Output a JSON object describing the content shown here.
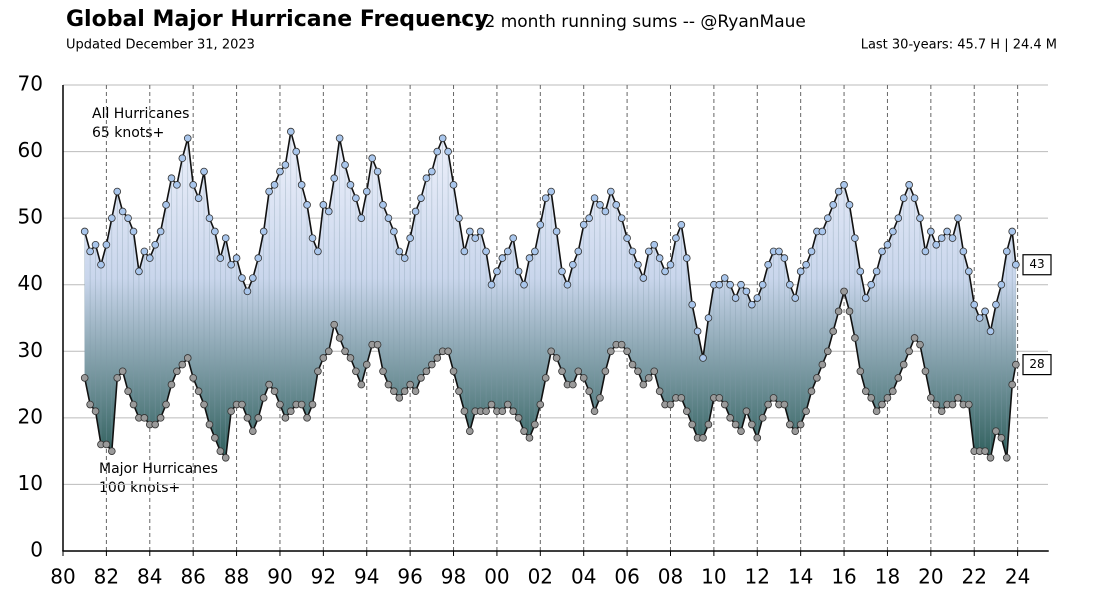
{
  "chart_data": {
    "type": "line",
    "title": "Global Major Hurricane Frequency",
    "subtitle": "-- 12 month running sums -- @RyanMaue",
    "updated": "Updated December 31, 2023",
    "summary": "Last 30-years:  45.7 H | 24.4 M",
    "xlim": [
      1980,
      2025.4
    ],
    "ylim": [
      0,
      70
    ],
    "yticks": [
      0,
      10,
      20,
      30,
      40,
      50,
      60,
      70
    ],
    "xticks": [
      {
        "value": 1980,
        "label": "80"
      },
      {
        "value": 1982,
        "label": "82"
      },
      {
        "value": 1984,
        "label": "84"
      },
      {
        "value": 1986,
        "label": "86"
      },
      {
        "value": 1988,
        "label": "88"
      },
      {
        "value": 1990,
        "label": "90"
      },
      {
        "value": 1992,
        "label": "92"
      },
      {
        "value": 1994,
        "label": "94"
      },
      {
        "value": 1996,
        "label": "96"
      },
      {
        "value": 1998,
        "label": "98"
      },
      {
        "value": 2000,
        "label": "00"
      },
      {
        "value": 2002,
        "label": "02"
      },
      {
        "value": 2004,
        "label": "04"
      },
      {
        "value": 2006,
        "label": "06"
      },
      {
        "value": 2008,
        "label": "08"
      },
      {
        "value": 2010,
        "label": "10"
      },
      {
        "value": 2012,
        "label": "12"
      },
      {
        "value": 2014,
        "label": "14"
      },
      {
        "value": 2016,
        "label": "16"
      },
      {
        "value": 2018,
        "label": "18"
      },
      {
        "value": 2020,
        "label": "20"
      },
      {
        "value": 2022,
        "label": "22"
      },
      {
        "value": 2024,
        "label": "24"
      }
    ],
    "grid": true,
    "x": [
      1981,
      1981.25,
      1981.5,
      1981.75,
      1982,
      1982.25,
      1982.5,
      1982.75,
      1983,
      1983.25,
      1983.5,
      1983.75,
      1984,
      1984.25,
      1984.5,
      1984.75,
      1985,
      1985.25,
      1985.5,
      1985.75,
      1986,
      1986.25,
      1986.5,
      1986.75,
      1987,
      1987.25,
      1987.5,
      1987.75,
      1988,
      1988.25,
      1988.5,
      1988.75,
      1989,
      1989.25,
      1989.5,
      1989.75,
      1990,
      1990.25,
      1990.5,
      1990.75,
      1991,
      1991.25,
      1991.5,
      1991.75,
      1992,
      1992.25,
      1992.5,
      1992.75,
      1993,
      1993.25,
      1993.5,
      1993.75,
      1994,
      1994.25,
      1994.5,
      1994.75,
      1995,
      1995.25,
      1995.5,
      1995.75,
      1996,
      1996.25,
      1996.5,
      1996.75,
      1997,
      1997.25,
      1997.5,
      1997.75,
      1998,
      1998.25,
      1998.5,
      1998.75,
      1999,
      1999.25,
      1999.5,
      1999.75,
      2000,
      2000.25,
      2000.5,
      2000.75,
      2001,
      2001.25,
      2001.5,
      2001.75,
      2002,
      2002.25,
      2002.5,
      2002.75,
      2003,
      2003.25,
      2003.5,
      2003.75,
      2004,
      2004.25,
      2004.5,
      2004.75,
      2005,
      2005.25,
      2005.5,
      2005.75,
      2006,
      2006.25,
      2006.5,
      2006.75,
      2007,
      2007.25,
      2007.5,
      2007.75,
      2008,
      2008.25,
      2008.5,
      2008.75,
      2009,
      2009.25,
      2009.5,
      2009.75,
      2010,
      2010.25,
      2010.5,
      2010.75,
      2011,
      2011.25,
      2011.5,
      2011.75,
      2012,
      2012.25,
      2012.5,
      2012.75,
      2013,
      2013.25,
      2013.5,
      2013.75,
      2014,
      2014.25,
      2014.5,
      2014.75,
      2015,
      2015.25,
      2015.5,
      2015.75,
      2016,
      2016.25,
      2016.5,
      2016.75,
      2017,
      2017.25,
      2017.5,
      2017.75,
      2018,
      2018.25,
      2018.5,
      2018.75,
      2019,
      2019.25,
      2019.5,
      2019.75,
      2020,
      2020.25,
      2020.5,
      2020.75,
      2021,
      2021.25,
      2021.5,
      2021.75,
      2022,
      2022.25,
      2022.5,
      2022.75,
      2023,
      2023.25,
      2023.5,
      2023.75,
      2023.92
    ],
    "series": [
      {
        "name": "All Hurricanes",
        "subname": "65 knots+",
        "color": "#a9c6ec",
        "values": [
          48,
          45,
          46,
          43,
          46,
          50,
          54,
          51,
          50,
          48,
          42,
          45,
          44,
          46,
          48,
          52,
          56,
          55,
          59,
          62,
          55,
          53,
          57,
          50,
          48,
          44,
          47,
          43,
          44,
          41,
          39,
          41,
          44,
          48,
          54,
          55,
          57,
          58,
          63,
          60,
          55,
          52,
          47,
          45,
          52,
          51,
          56,
          62,
          58,
          55,
          53,
          50,
          54,
          59,
          57,
          52,
          50,
          48,
          45,
          44,
          47,
          51,
          53,
          56,
          57,
          60,
          62,
          60,
          55,
          50,
          45,
          48,
          47,
          48,
          45,
          40,
          42,
          44,
          45,
          47,
          42,
          40,
          44,
          45,
          49,
          53,
          54,
          48,
          42,
          40,
          43,
          45,
          49,
          50,
          53,
          52,
          51,
          54,
          52,
          50,
          47,
          45,
          43,
          41,
          45,
          46,
          44,
          42,
          43,
          47,
          49,
          44,
          37,
          33,
          29,
          35,
          40,
          40,
          41,
          40,
          38,
          40,
          39,
          37,
          38,
          40,
          43,
          45,
          45,
          44,
          40,
          38,
          42,
          43,
          45,
          48,
          48,
          50,
          52,
          54,
          55,
          52,
          47,
          42,
          38,
          40,
          42,
          45,
          46,
          48,
          50,
          53,
          55,
          53,
          50,
          45,
          48,
          46,
          47,
          48,
          47,
          50,
          45,
          42,
          37,
          35,
          36,
          33,
          37,
          40,
          45,
          48,
          43
        ]
      },
      {
        "name": "Major Hurricanes",
        "subname": "100 knots+",
        "color": "#9a9a9a",
        "values": [
          26,
          22,
          21,
          16,
          16,
          15,
          26,
          27,
          24,
          22,
          20,
          20,
          19,
          19,
          20,
          22,
          25,
          27,
          28,
          29,
          26,
          24,
          22,
          19,
          17,
          15,
          14,
          21,
          22,
          22,
          20,
          18,
          20,
          23,
          25,
          24,
          22,
          20,
          21,
          22,
          22,
          20,
          22,
          27,
          29,
          30,
          34,
          32,
          30,
          29,
          27,
          25,
          28,
          31,
          31,
          27,
          25,
          24,
          23,
          24,
          25,
          24,
          26,
          27,
          28,
          29,
          30,
          30,
          27,
          24,
          21,
          18,
          21,
          21,
          21,
          22,
          21,
          21,
          22,
          21,
          20,
          18,
          17,
          19,
          22,
          26,
          30,
          29,
          27,
          25,
          25,
          27,
          26,
          24,
          21,
          23,
          27,
          30,
          31,
          31,
          30,
          28,
          27,
          25,
          26,
          27,
          24,
          22,
          22,
          23,
          23,
          21,
          19,
          17,
          17,
          19,
          23,
          23,
          22,
          20,
          19,
          18,
          21,
          19,
          17,
          20,
          22,
          23,
          22,
          22,
          19,
          18,
          19,
          21,
          24,
          26,
          28,
          30,
          33,
          36,
          39,
          36,
          32,
          27,
          24,
          23,
          21,
          22,
          23,
          24,
          26,
          28,
          30,
          32,
          31,
          27,
          23,
          22,
          21,
          22,
          22,
          23,
          22,
          22,
          15,
          15,
          15,
          14,
          18,
          17,
          14,
          25,
          28
        ]
      }
    ]
  }
}
